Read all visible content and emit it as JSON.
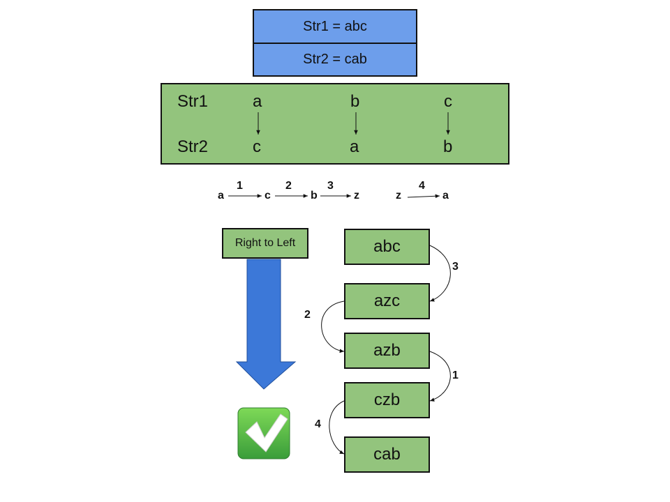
{
  "header": {
    "str1": "Str1 = abc",
    "str2": "Str2 = cab"
  },
  "mapping_panel": {
    "row1_label": "Str1",
    "row2_label": "Str2",
    "str1_chars": [
      "a",
      "b",
      "c"
    ],
    "str2_chars": [
      "c",
      "a",
      "b"
    ]
  },
  "chain": {
    "nodes": [
      "a",
      "c",
      "b",
      "z"
    ],
    "steps": [
      "1",
      "2",
      "3"
    ],
    "extra_from": "z",
    "extra_to": "a",
    "extra_step": "4"
  },
  "direction": {
    "label": "Right to Left"
  },
  "sequence": {
    "states": [
      "abc",
      "azc",
      "azb",
      "czb",
      "cab"
    ],
    "transitions": [
      "3",
      "2",
      "1",
      "4"
    ]
  },
  "colors": {
    "blue_box": "#6d9eeb",
    "green": "#93c47d",
    "arrow_blue": "#3c78d8",
    "check_green": "#4caf50"
  },
  "icons": {
    "check": "check-mark-icon",
    "direction_arrow": "arrow-down-icon"
  }
}
